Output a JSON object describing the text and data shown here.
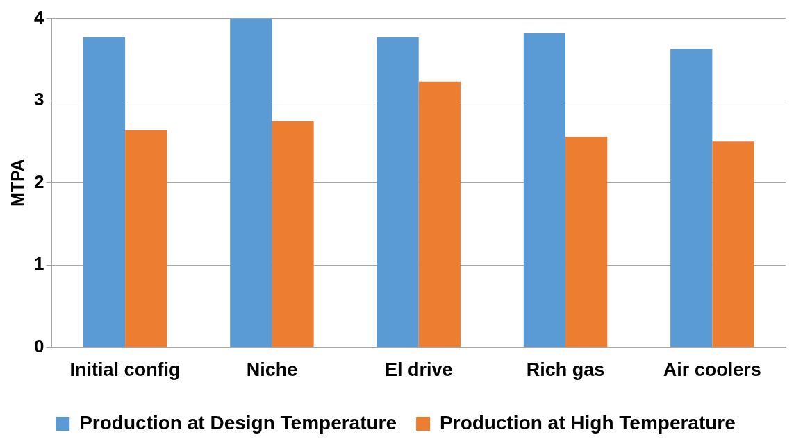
{
  "chart_data": {
    "type": "bar",
    "ylabel": "MTPA",
    "categories": [
      "Initial config",
      "Niche",
      "El drive",
      "Rich gas",
      "Air coolers"
    ],
    "series": [
      {
        "name": "Production at Design Temperature",
        "color": "#5b9bd5",
        "values": [
          3.77,
          4.0,
          3.77,
          3.82,
          3.63
        ]
      },
      {
        "name": "Production at High Temperature",
        "color": "#ed7d31",
        "values": [
          2.64,
          2.75,
          3.23,
          2.56,
          2.5
        ]
      }
    ],
    "ylim": [
      0,
      4
    ],
    "yticks": [
      0,
      1,
      2,
      3,
      4
    ],
    "grid": "y",
    "legend": "bottom"
  }
}
